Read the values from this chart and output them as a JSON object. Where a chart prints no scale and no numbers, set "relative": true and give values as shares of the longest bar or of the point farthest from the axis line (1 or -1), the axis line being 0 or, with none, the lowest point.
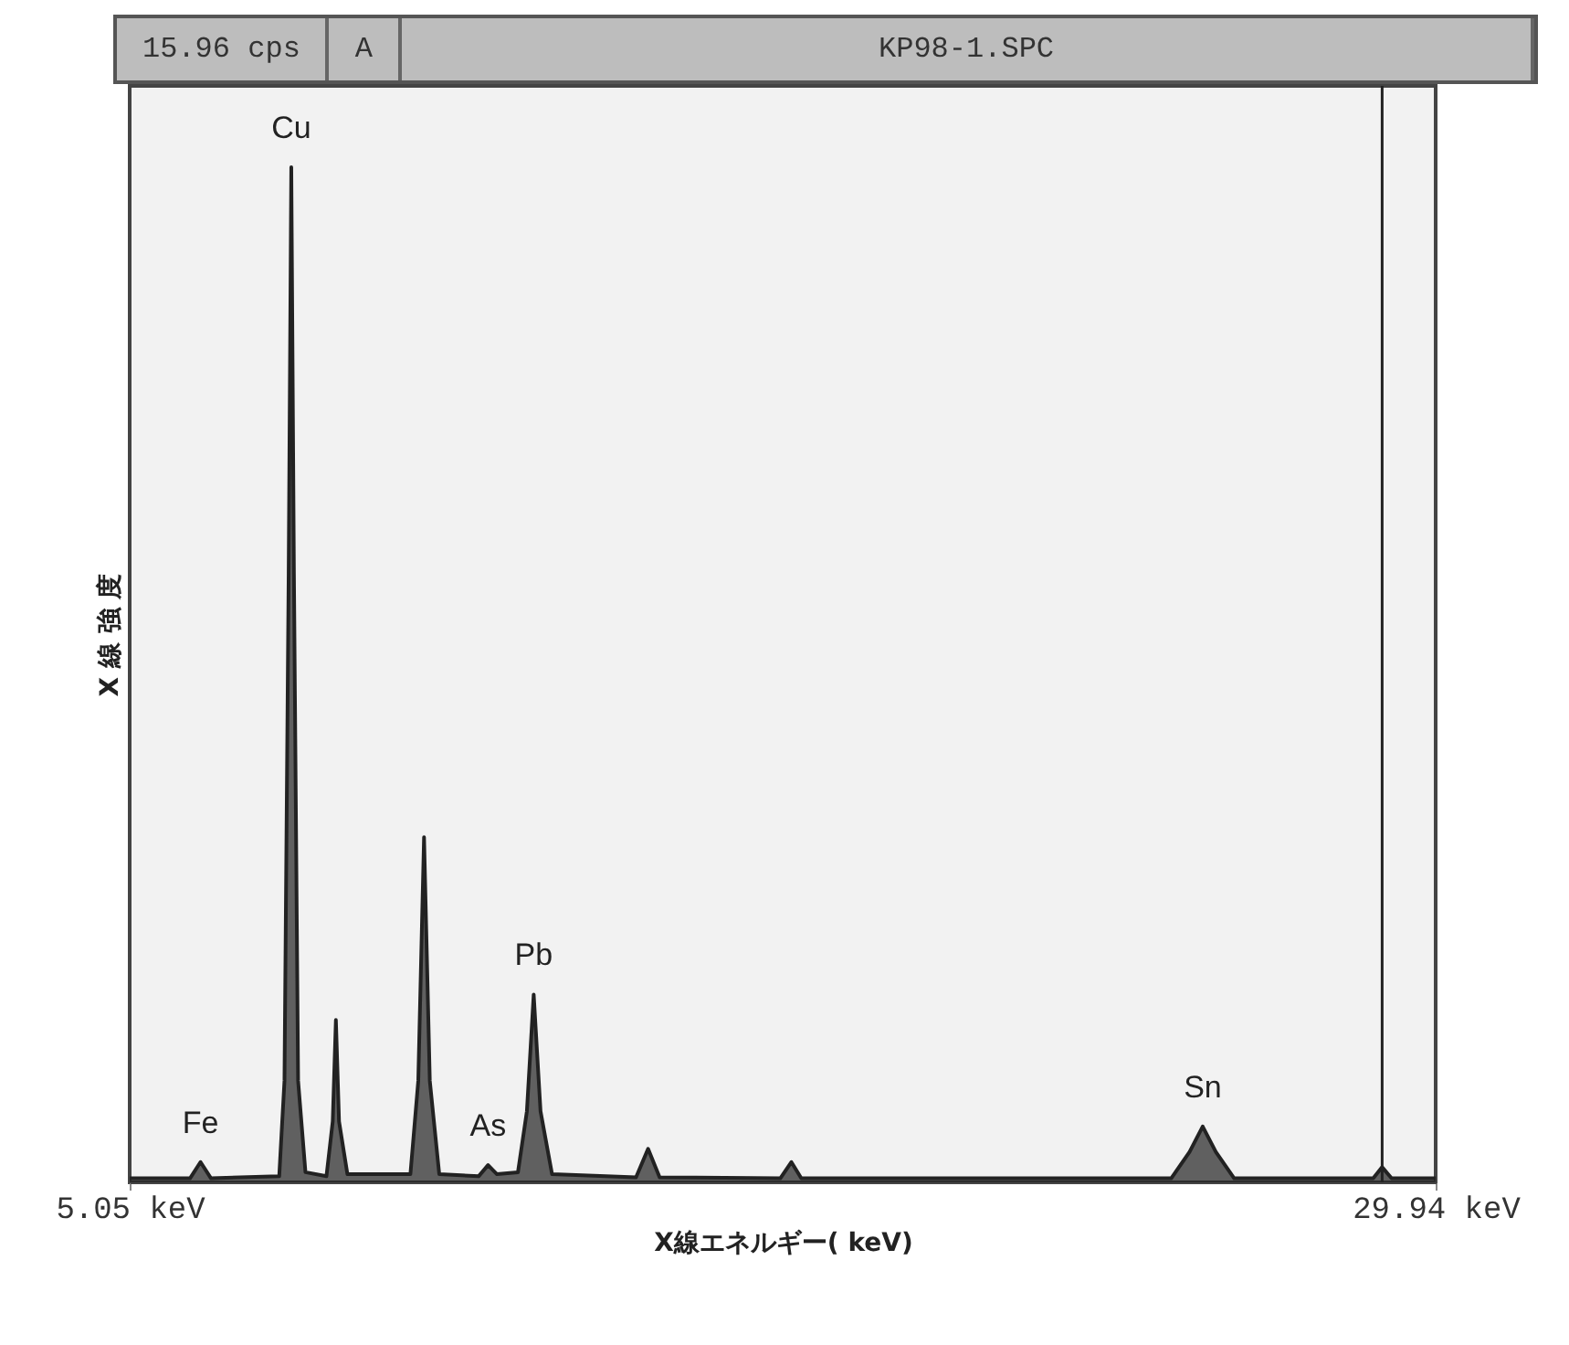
{
  "chart_data": {
    "type": "area",
    "relative": true,
    "xlabel": "X線エネルギー( keV)",
    "ylabel": "X 線 強 度",
    "annotations": [
      "15.96 cps",
      "A",
      "KP98-1.SPC",
      {
        "text": "Fe",
        "x": 6.4,
        "y": 0.02
      },
      {
        "text": "Cu",
        "x": 8.13,
        "y": 1
      },
      {
        "text": "As",
        "x": 11.88,
        "y": 0.017
      },
      {
        "text": "Pb",
        "x": 12.75,
        "y": 0.185
      },
      {
        "text": "Sn",
        "x": 25.5,
        "y": 0.055
      }
    ],
    "xlim": [
      5.05,
      29.94
    ],
    "xticks": [
      {
        "value": 5.05,
        "label": "5.05 keV"
      },
      {
        "value": 29.94,
        "label": "29.94 keV"
      }
    ],
    "ref_lines": [
      {
        "axis": "x",
        "value": 28.92,
        "color": "#222222"
      }
    ],
    "series": [
      {
        "color": "#222222",
        "x": [
          5.05,
          6.2,
          6.4,
          6.6,
          7.9,
          8.0,
          8.08,
          8.13,
          8.18,
          8.26,
          8.4,
          8.8,
          8.92,
          8.98,
          9.04,
          9.2,
          10.4,
          10.55,
          10.66,
          10.77,
          10.95,
          11.7,
          11.88,
          12.05,
          12.45,
          12.62,
          12.75,
          12.88,
          13.1,
          14.7,
          14.93,
          15.15,
          17.45,
          17.66,
          17.85,
          24.9,
          25.25,
          25.5,
          25.75,
          26.1,
          28.75,
          28.92,
          29.1,
          29.94
        ],
        "values": [
          0.004,
          0.004,
          0.02,
          0.004,
          0.006,
          0.1,
          0.6,
          1,
          0.6,
          0.1,
          0.01,
          0.006,
          0.06,
          0.16,
          0.06,
          0.008,
          0.008,
          0.1,
          0.34,
          0.1,
          0.008,
          0.006,
          0.017,
          0.008,
          0.01,
          0.07,
          0.185,
          0.07,
          0.008,
          0.005,
          0.033,
          0.005,
          0.004,
          0.02,
          0.004,
          0.004,
          0.03,
          0.055,
          0.03,
          0.004,
          0.004,
          0.015,
          0.004,
          0.004
        ]
      }
    ]
  }
}
